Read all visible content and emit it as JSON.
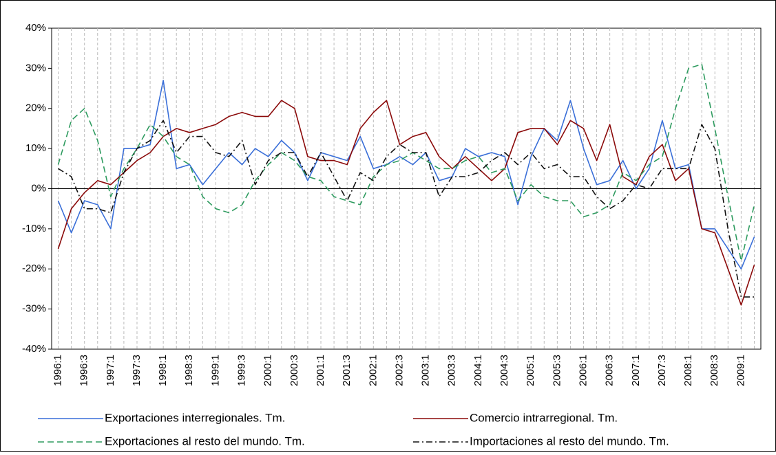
{
  "chart_data": {
    "type": "line",
    "categories": [
      "1996:1",
      null,
      "1996:3",
      null,
      "1997:1",
      null,
      "1997:3",
      null,
      "1998:1",
      null,
      "1998:3",
      null,
      "1999:1",
      null,
      "1999:3",
      null,
      "2000:1",
      null,
      "2000:3",
      null,
      "2001:1",
      null,
      "2001:3",
      null,
      "2002:1",
      null,
      "2002:3",
      null,
      "2003:1",
      null,
      "2003:3",
      null,
      "2004:1",
      null,
      "2004:3",
      null,
      "2005:1",
      null,
      "2005:3",
      null,
      "2006:1",
      null,
      "2006:3",
      null,
      "2007:1",
      null,
      "2007:3",
      null,
      "2008:1",
      null,
      "2008:3",
      null,
      "2009:1",
      null
    ],
    "series": [
      {
        "name": "Exportaciones interregionales. Tm.",
        "color": "#3a6fd8",
        "dash": "solid",
        "values": [
          -3,
          -11,
          -3,
          -4,
          -10,
          10,
          10,
          11,
          27,
          5,
          6,
          1,
          5,
          9,
          6,
          10,
          8,
          12,
          9,
          2,
          9,
          8,
          7,
          13,
          5,
          6,
          8,
          6,
          9,
          2,
          3,
          10,
          8,
          9,
          8,
          -4,
          8,
          15,
          12,
          22,
          10,
          1,
          2,
          7,
          0,
          5,
          17,
          5,
          6,
          -10,
          -10,
          -15,
          -20,
          -12
        ]
      },
      {
        "name": "Comercio intrarregional. Tm.",
        "color": "#8b0a0a",
        "dash": "solid",
        "values": [
          -15,
          -5,
          -1,
          2,
          1,
          4,
          7,
          9,
          13,
          15,
          14,
          15,
          16,
          18,
          19,
          18,
          18,
          22,
          20,
          8,
          7,
          7,
          6,
          15,
          19,
          22,
          11,
          13,
          14,
          8,
          5,
          8,
          5,
          2,
          5,
          14,
          15,
          15,
          11,
          17,
          15,
          7,
          16,
          3,
          1,
          8,
          11,
          2,
          5,
          -10,
          -11,
          -20,
          -29,
          -19
        ]
      },
      {
        "name": "Exportaciones al resto del mundo. Tm.",
        "color": "#2e9b5f",
        "dash": "dashed",
        "values": [
          6,
          17,
          20,
          12,
          -2,
          5,
          10,
          16,
          13,
          8,
          6,
          -2,
          -5,
          -6,
          -4,
          2,
          6,
          9,
          7,
          3,
          2,
          -2,
          -3,
          -4,
          3,
          6,
          7,
          9,
          7,
          5,
          5,
          7,
          8,
          4,
          5,
          -3,
          1,
          -2,
          -3,
          -3,
          -7,
          -6,
          -4,
          4,
          2,
          6,
          8,
          20,
          30,
          31,
          15,
          -2,
          -18,
          -4
        ]
      },
      {
        "name": "Importaciones al resto del mundo. Tm.",
        "color": "#111111",
        "dash": "dashdot",
        "values": [
          5,
          3,
          -5,
          -5,
          -6,
          4,
          10,
          12,
          17,
          9,
          13,
          13,
          9,
          8,
          12,
          1,
          7,
          9,
          9,
          3,
          9,
          3,
          -3,
          4,
          2,
          8,
          11,
          9,
          9,
          -2,
          3,
          3,
          4,
          7,
          9,
          6,
          9,
          5,
          6,
          3,
          3,
          -2,
          -5,
          -3,
          1,
          0,
          5,
          5,
          5,
          16,
          10,
          -10,
          -27,
          -27
        ]
      }
    ],
    "ylim": [
      -40,
      40
    ],
    "yticks": [
      {
        "value": -40,
        "label": "-40%"
      },
      {
        "value": -30,
        "label": "-30%"
      },
      {
        "value": -20,
        "label": "-20%"
      },
      {
        "value": -10,
        "label": "-10%"
      },
      {
        "value": 0,
        "label": "0%"
      },
      {
        "value": 10,
        "label": "10%"
      },
      {
        "value": 20,
        "label": "20%"
      },
      {
        "value": 30,
        "label": "30%"
      },
      {
        "value": 40,
        "label": "40%"
      }
    ],
    "xgrid": true
  }
}
